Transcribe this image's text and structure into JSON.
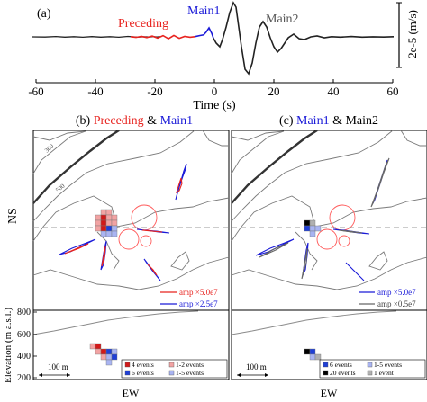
{
  "panel_a": {
    "label": "(a)",
    "xlabel": "Time (s)",
    "xticks": [
      "-60",
      "-40",
      "-20",
      "0",
      "20",
      "40",
      "60"
    ],
    "xtick_values": [
      -60,
      -40,
      -20,
      0,
      20,
      40,
      60
    ],
    "xlim": [
      -60,
      60
    ],
    "scale_label": "2e-5 (m/s)",
    "segments": [
      {
        "label": "Preceding",
        "color": "#e8231f"
      },
      {
        "label": "Main1",
        "color": "#1a1ad8"
      },
      {
        "label": "Main2",
        "color": "#555555"
      }
    ]
  },
  "panel_b": {
    "label": "(b)",
    "title_parts": [
      {
        "text": "Preceding",
        "color": "#e8231f"
      },
      {
        "text": " & ",
        "color": "#000000"
      },
      {
        "text": "Main1",
        "color": "#1a1ad8"
      }
    ],
    "legend": [
      {
        "text": "amp ×5.0e7",
        "color": "#e8231f"
      },
      {
        "text": "amp ×2.5e7",
        "color": "#1a1ad8"
      }
    ],
    "event_legend": [
      {
        "text": "4 events",
        "fill": "#d21919"
      },
      {
        "text": "1-2 events",
        "fill": "#f2a3a3"
      },
      {
        "text": "6 events",
        "fill": "#1f3fd6"
      },
      {
        "text": "1-5 events",
        "fill": "#a9b4f2"
      }
    ],
    "scale_bar": "100 m",
    "contour_labels": [
      "300",
      "500"
    ]
  },
  "panel_c": {
    "label": "(c)",
    "title_parts": [
      {
        "text": "Main1",
        "color": "#1a1ad8"
      },
      {
        "text": " & ",
        "color": "#000000"
      },
      {
        "text": "Main2",
        "color": "#000000"
      }
    ],
    "legend": [
      {
        "text": "amp ×5.0e7",
        "color": "#1a1ad8"
      },
      {
        "text": "amp ×0.5e7",
        "color": "#666666"
      }
    ],
    "event_legend": [
      {
        "text": "6 events",
        "fill": "#1f3fd6"
      },
      {
        "text": "1-5 events",
        "fill": "#a9b4f2"
      },
      {
        "text": "20 events",
        "fill": "#000000"
      },
      {
        "text": "1 event",
        "fill": "#b0b0b0"
      }
    ],
    "scale_bar": "100 m"
  },
  "axes": {
    "ns_label": "NS",
    "ew_label": "EW",
    "elevation_label": "Elevation (m a.s.l.)",
    "elevation_ticks": [
      "800",
      "600",
      "400",
      "200"
    ]
  }
}
